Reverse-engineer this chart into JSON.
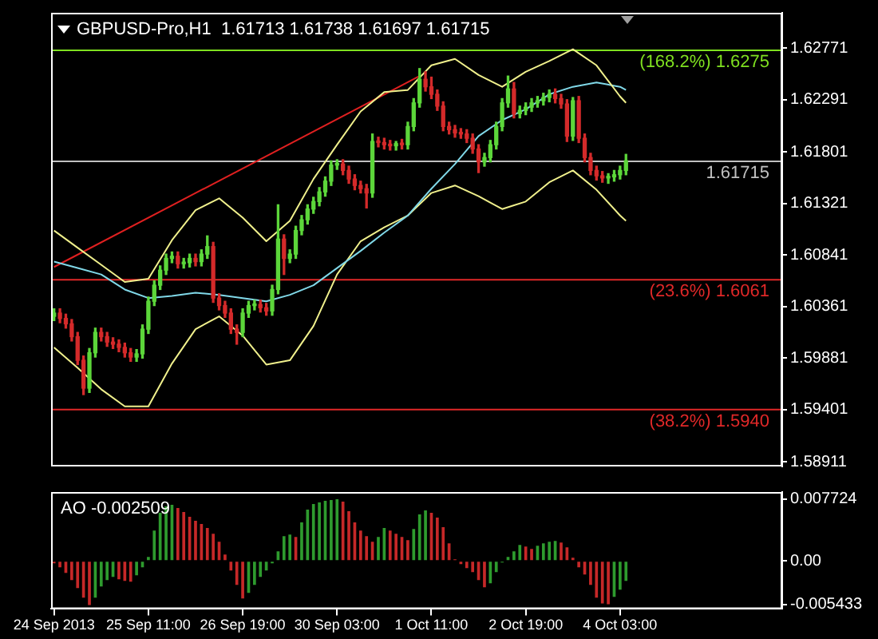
{
  "chart_data": [
    {
      "type": "candlestick",
      "title": "GBPUSD-Pro,H1  1.61713 1.61738 1.61697 1.61715",
      "categories": [
        null,
        null,
        null,
        null,
        null,
        null,
        null,
        null,
        null,
        null,
        null,
        null,
        null,
        null,
        null,
        null,
        null,
        null,
        null,
        null,
        null,
        null,
        null,
        null,
        null,
        null,
        null,
        null,
        null,
        null,
        null,
        null,
        null,
        null,
        null,
        null,
        null,
        null,
        null,
        null,
        null,
        null,
        null,
        null,
        null,
        null,
        null,
        null,
        null,
        null,
        null,
        null,
        null,
        null,
        null,
        null,
        null,
        null,
        null,
        null,
        null,
        null,
        null,
        null,
        null,
        null,
        null,
        null,
        null,
        null,
        null,
        null,
        null,
        null,
        null,
        null,
        null,
        null,
        null,
        null,
        null,
        null,
        null,
        null,
        null,
        null,
        null,
        null,
        null,
        null,
        null,
        null,
        null,
        null,
        null,
        null,
        null,
        null,
        null,
        null,
        null,
        null,
        null,
        null,
        null,
        null,
        null,
        null,
        null,
        null,
        null,
        null,
        null,
        null,
        null,
        null,
        null,
        null,
        null,
        null,
        null,
        null,
        null,
        null
      ],
      "ohlc": [
        [
          1.6027,
          1.6034,
          1.6023,
          1.603
        ],
        [
          1.603,
          1.6034,
          1.6021,
          1.6025
        ],
        [
          1.6025,
          1.6029,
          1.6016,
          1.602
        ],
        [
          1.602,
          1.6024,
          1.6004,
          1.6008
        ],
        [
          1.6008,
          1.6012,
          1.5982,
          1.5986
        ],
        [
          1.5986,
          1.599,
          1.5954,
          1.596
        ],
        [
          1.596,
          1.5997,
          1.5956,
          1.5993
        ],
        [
          1.5993,
          1.6016,
          1.5989,
          1.6012
        ],
        [
          1.6012,
          1.6016,
          1.6004,
          1.6008
        ],
        [
          1.6008,
          1.6012,
          1.5999,
          1.6003
        ],
        [
          1.6003,
          1.6007,
          1.5997,
          1.6001
        ],
        [
          1.6001,
          1.6005,
          1.5994,
          1.5998
        ],
        [
          1.5998,
          1.6002,
          1.5989,
          1.5993
        ],
        [
          1.5993,
          1.5997,
          1.5985,
          1.5989
        ],
        [
          1.5989,
          1.5996,
          1.5985,
          1.5992
        ],
        [
          1.5992,
          1.6019,
          1.5988,
          1.6015
        ],
        [
          1.6015,
          1.6045,
          1.6011,
          1.6041
        ],
        [
          1.6041,
          1.606,
          1.6037,
          1.6056
        ],
        [
          1.6056,
          1.6074,
          1.6052,
          1.607
        ],
        [
          1.607,
          1.6085,
          1.6066,
          1.6081
        ],
        [
          1.6081,
          1.6087,
          1.6077,
          1.6083
        ],
        [
          1.6083,
          1.6087,
          1.6072,
          1.6076
        ],
        [
          1.6076,
          1.6081,
          1.6072,
          1.6077
        ],
        [
          1.6077,
          1.6085,
          1.6073,
          1.6081
        ],
        [
          1.6081,
          1.6085,
          1.6074,
          1.6078
        ],
        [
          1.6078,
          1.6089,
          1.6074,
          1.6085
        ],
        [
          1.6085,
          1.6102,
          1.6081,
          1.6092
        ],
        [
          1.6092,
          1.6096,
          1.604,
          1.6044
        ],
        [
          1.6044,
          1.6048,
          1.6033,
          1.6037
        ],
        [
          1.6037,
          1.6041,
          1.6026,
          1.603
        ],
        [
          1.603,
          1.6034,
          1.6011,
          1.6015
        ],
        [
          1.6015,
          1.6019,
          1.6001,
          1.6012
        ],
        [
          1.6012,
          1.6034,
          1.6008,
          1.603
        ],
        [
          1.603,
          1.6041,
          1.6026,
          1.6037
        ],
        [
          1.6037,
          1.6042,
          1.6033,
          1.6038
        ],
        [
          1.6038,
          1.6042,
          1.6031,
          1.6035
        ],
        [
          1.6035,
          1.6039,
          1.6028,
          1.6032
        ],
        [
          1.6032,
          1.6056,
          1.6028,
          1.6052
        ],
        [
          1.6052,
          1.6131,
          1.6048,
          1.6099
        ],
        [
          1.6099,
          1.6103,
          1.6066,
          1.6081
        ],
        [
          1.6081,
          1.6089,
          1.6077,
          1.6085
        ],
        [
          1.6085,
          1.6111,
          1.6081,
          1.6107
        ],
        [
          1.6107,
          1.6121,
          1.6103,
          1.6117
        ],
        [
          1.6117,
          1.6131,
          1.6113,
          1.6127
        ],
        [
          1.6127,
          1.6138,
          1.6123,
          1.6134
        ],
        [
          1.6134,
          1.6147,
          1.613,
          1.6143
        ],
        [
          1.6143,
          1.6157,
          1.6139,
          1.6153
        ],
        [
          1.6153,
          1.6172,
          1.6149,
          1.6168
        ],
        [
          1.6168,
          1.6173,
          1.6164,
          1.6169
        ],
        [
          1.6169,
          1.6173,
          1.6159,
          1.6163
        ],
        [
          1.6163,
          1.6167,
          1.6151,
          1.6155
        ],
        [
          1.6155,
          1.6159,
          1.6145,
          1.6149
        ],
        [
          1.6149,
          1.6153,
          1.6142,
          1.6146
        ],
        [
          1.6146,
          1.615,
          1.6128,
          1.6142
        ],
        [
          1.6142,
          1.6197,
          1.6138,
          1.619
        ],
        [
          1.619,
          1.6194,
          1.6185,
          1.6189
        ],
        [
          1.6189,
          1.6193,
          1.6183,
          1.6187
        ],
        [
          1.6187,
          1.6191,
          1.6182,
          1.6186
        ],
        [
          1.6186,
          1.619,
          1.6182,
          1.6188
        ],
        [
          1.6188,
          1.6192,
          1.6183,
          1.6187
        ],
        [
          1.6187,
          1.6208,
          1.6183,
          1.6204
        ],
        [
          1.6204,
          1.623,
          1.62,
          1.6226
        ],
        [
          1.6226,
          1.6258,
          1.6222,
          1.6248
        ],
        [
          1.6248,
          1.6255,
          1.6237,
          1.6241
        ],
        [
          1.6241,
          1.625,
          1.623,
          1.6234
        ],
        [
          1.6234,
          1.6238,
          1.6219,
          1.6223
        ],
        [
          1.6223,
          1.6227,
          1.62,
          1.6204
        ],
        [
          1.6204,
          1.6208,
          1.6197,
          1.6201
        ],
        [
          1.6201,
          1.6205,
          1.6194,
          1.6198
        ],
        [
          1.6198,
          1.6202,
          1.6193,
          1.6197
        ],
        [
          1.6197,
          1.6201,
          1.6189,
          1.6193
        ],
        [
          1.6193,
          1.6197,
          1.6179,
          1.6183
        ],
        [
          1.6183,
          1.6187,
          1.6161,
          1.6171
        ],
        [
          1.6171,
          1.6179,
          1.6167,
          1.6175
        ],
        [
          1.6175,
          1.6191,
          1.6171,
          1.6187
        ],
        [
          1.6187,
          1.6208,
          1.6183,
          1.6204
        ],
        [
          1.6204,
          1.623,
          1.62,
          1.6226
        ],
        [
          1.6226,
          1.6251,
          1.6222,
          1.6239
        ],
        [
          1.6239,
          1.6245,
          1.6212,
          1.6216
        ],
        [
          1.6216,
          1.6223,
          1.6212,
          1.6219
        ],
        [
          1.6219,
          1.6226,
          1.6215,
          1.6222
        ],
        [
          1.6222,
          1.623,
          1.6218,
          1.6226
        ],
        [
          1.6226,
          1.6232,
          1.6222,
          1.6228
        ],
        [
          1.6228,
          1.6235,
          1.6224,
          1.6231
        ],
        [
          1.6231,
          1.6238,
          1.6227,
          1.6234
        ],
        [
          1.6234,
          1.6239,
          1.6226,
          1.623
        ],
        [
          1.623,
          1.6234,
          1.6221,
          1.6225
        ],
        [
          1.6225,
          1.6229,
          1.619,
          1.6195
        ],
        [
          1.6195,
          1.6231,
          1.6191,
          1.6228
        ],
        [
          1.6228,
          1.6232,
          1.6189,
          1.6193
        ],
        [
          1.6193,
          1.6197,
          1.6171,
          1.6175
        ],
        [
          1.6175,
          1.6179,
          1.6159,
          1.6163
        ],
        [
          1.6163,
          1.6167,
          1.6154,
          1.6158
        ],
        [
          1.6158,
          1.6162,
          1.6152,
          1.6156
        ],
        [
          1.6156,
          1.616,
          1.6151,
          1.6157
        ],
        [
          1.6157,
          1.6163,
          1.6153,
          1.6159
        ],
        [
          1.6159,
          1.6167,
          1.6155,
          1.6163
        ],
        [
          1.6163,
          1.6178,
          1.6159,
          1.6172
        ],
        null,
        null,
        null,
        null,
        null,
        null,
        null,
        null,
        null,
        null,
        null,
        null,
        null,
        null,
        null,
        null,
        null,
        null,
        null,
        null,
        null,
        null,
        null,
        null,
        null,
        null
      ],
      "colors": [
        "#5cd63a",
        "#d42a2a",
        "#d42a2a",
        "#d42a2a",
        "#d42a2a",
        "#d42a2a",
        "#5cd63a",
        "#5cd63a",
        "#d42a2a",
        "#d42a2a",
        "#d42a2a",
        "#d42a2a",
        "#d42a2a",
        "#d42a2a",
        "#5cd63a",
        "#5cd63a",
        "#5cd63a",
        "#5cd63a",
        "#5cd63a",
        "#5cd63a",
        "#5cd63a",
        "#d42a2a",
        "#5cd63a",
        "#5cd63a",
        "#d42a2a",
        "#5cd63a",
        "#5cd63a",
        "#d42a2a",
        "#d42a2a",
        "#d42a2a",
        "#d42a2a",
        "#d42a2a",
        "#5cd63a",
        "#5cd63a",
        "#5cd63a",
        "#d42a2a",
        "#d42a2a",
        "#5cd63a",
        "#5cd63a",
        "#d42a2a",
        "#5cd63a",
        "#5cd63a",
        "#5cd63a",
        "#5cd63a",
        "#5cd63a",
        "#5cd63a",
        "#5cd63a",
        "#5cd63a",
        "#5cd63a",
        "#d42a2a",
        "#d42a2a",
        "#d42a2a",
        "#d42a2a",
        "#d42a2a",
        "#5cd63a",
        "#d42a2a",
        "#d42a2a",
        "#d42a2a",
        "#5cd63a",
        "#d42a2a",
        "#5cd63a",
        "#5cd63a",
        "#5cd63a",
        "#d42a2a",
        "#d42a2a",
        "#d42a2a",
        "#d42a2a",
        "#d42a2a",
        "#d42a2a",
        "#d42a2a",
        "#d42a2a",
        "#d42a2a",
        "#d42a2a",
        "#5cd63a",
        "#5cd63a",
        "#5cd63a",
        "#5cd63a",
        "#5cd63a",
        "#d42a2a",
        "#5cd63a",
        "#5cd63a",
        "#5cd63a",
        "#5cd63a",
        "#5cd63a",
        "#5cd63a",
        "#d42a2a",
        "#d42a2a",
        "#d42a2a",
        "#5cd63a",
        "#d42a2a",
        "#d42a2a",
        "#d42a2a",
        "#d42a2a",
        "#d42a2a",
        "#5cd63a",
        "#5cd63a",
        "#5cd63a",
        "#5cd63a",
        null,
        null,
        null,
        null,
        null,
        null,
        null,
        null,
        null,
        null,
        null,
        null,
        null,
        null,
        null,
        null,
        null,
        null,
        null,
        null,
        null,
        null,
        null,
        null,
        null,
        null
      ],
      "series": [
        {
          "type": "line",
          "color": "#f0f08c",
          "values": [
            1.6107,
            null,
            null,
            null,
            1.6091,
            null,
            null,
            null,
            1.6075,
            null,
            null,
            null,
            1.6059,
            null,
            null,
            null,
            1.6062,
            null,
            null,
            null,
            1.6098,
            null,
            null,
            null,
            1.6126,
            null,
            null,
            null,
            1.6137,
            null,
            null,
            null,
            1.6119,
            null,
            null,
            null,
            1.6097,
            null,
            null,
            null,
            1.6116,
            null,
            null,
            null,
            1.6155,
            null,
            null,
            null,
            1.6187,
            null,
            null,
            null,
            1.6218,
            null,
            null,
            null,
            1.6236,
            null,
            null,
            null,
            1.6238,
            null,
            null,
            null,
            1.6261,
            null,
            null,
            null,
            1.6267,
            null,
            null,
            null,
            1.6252,
            null,
            null,
            null,
            1.6241,
            null,
            null,
            null,
            1.6255,
            null,
            null,
            null,
            1.6265,
            null,
            null,
            null,
            1.6276,
            null,
            null,
            null,
            1.6261,
            null,
            null,
            null,
            1.6232,
            1.6226,
            null,
            null,
            null,
            null,
            null,
            null,
            null,
            null,
            null,
            null,
            null,
            null,
            null,
            null,
            null,
            null,
            null,
            null,
            null,
            null,
            null,
            null,
            null,
            null,
            null,
            null
          ]
        },
        {
          "type": "line",
          "color": "#80d8e8",
          "values": [
            1.6078,
            null,
            null,
            null,
            1.6072,
            null,
            null,
            null,
            1.6066,
            null,
            null,
            null,
            1.6052,
            null,
            null,
            null,
            1.6044,
            null,
            null,
            null,
            1.6046,
            null,
            null,
            null,
            1.6049,
            null,
            null,
            null,
            1.6047,
            null,
            null,
            null,
            1.6044,
            null,
            null,
            null,
            1.6041,
            null,
            null,
            null,
            1.6047,
            null,
            null,
            null,
            1.6056,
            null,
            null,
            null,
            1.6072,
            null,
            null,
            null,
            1.6088,
            null,
            null,
            null,
            1.6105,
            null,
            null,
            null,
            1.6121,
            null,
            null,
            null,
            1.6146,
            null,
            null,
            null,
            1.6169,
            null,
            null,
            null,
            1.6195,
            null,
            null,
            null,
            1.621,
            null,
            null,
            null,
            1.622,
            null,
            null,
            null,
            1.6234,
            null,
            null,
            null,
            1.6241,
            null,
            null,
            null,
            1.6245,
            null,
            null,
            null,
            1.6241,
            1.6238,
            null,
            null,
            null,
            null,
            null,
            null,
            null,
            null,
            null,
            null,
            null,
            null,
            null,
            null,
            null,
            null,
            null,
            null,
            null,
            null,
            null,
            null,
            null,
            null,
            null,
            null
          ]
        },
        {
          "type": "line",
          "color": "#f0f08c",
          "values": [
            1.5998,
            null,
            null,
            null,
            1.5979,
            null,
            null,
            null,
            1.5959,
            null,
            null,
            null,
            1.5943,
            null,
            null,
            null,
            1.5943,
            null,
            null,
            null,
            1.5983,
            null,
            null,
            null,
            1.6015,
            null,
            null,
            null,
            1.6027,
            null,
            null,
            null,
            1.6009,
            null,
            null,
            null,
            1.5982,
            null,
            null,
            null,
            1.5986,
            null,
            null,
            null,
            1.6018,
            null,
            null,
            null,
            1.6066,
            null,
            null,
            null,
            1.6097,
            null,
            null,
            null,
            1.611,
            null,
            null,
            null,
            1.6121,
            null,
            null,
            null,
            1.6142,
            null,
            null,
            null,
            1.6149,
            null,
            null,
            null,
            1.6139,
            null,
            null,
            null,
            1.6127,
            null,
            null,
            null,
            1.6134,
            null,
            null,
            null,
            1.6152,
            null,
            null,
            null,
            1.6163,
            null,
            null,
            null,
            1.6145,
            null,
            null,
            null,
            1.6121,
            1.6116,
            null,
            null,
            null,
            null,
            null,
            null,
            null,
            null,
            null,
            null,
            null,
            null,
            null,
            null,
            null,
            null,
            null,
            null,
            null,
            null,
            null,
            null,
            null,
            null,
            null,
            null
          ]
        },
        {
          "type": "line",
          "color": "#e02020",
          "values": [
            1.6073,
            null,
            null,
            null,
            null,
            null,
            null,
            null,
            null,
            null,
            null,
            null,
            null,
            null,
            null,
            null,
            null,
            null,
            null,
            null,
            null,
            null,
            null,
            null,
            null,
            null,
            null,
            null,
            null,
            null,
            null,
            null,
            null,
            null,
            null,
            null,
            null,
            null,
            null,
            null,
            null,
            null,
            null,
            null,
            null,
            null,
            null,
            null,
            null,
            null,
            null,
            null,
            null,
            null,
            null,
            null,
            null,
            null,
            null,
            null,
            null,
            null,
            1.6251,
            null,
            null,
            null,
            null,
            null,
            null,
            null,
            null,
            null,
            null,
            null,
            null,
            null,
            null,
            null,
            null,
            null,
            null,
            null,
            null,
            null,
            null,
            null,
            null,
            null,
            null,
            null,
            null,
            null,
            null,
            null,
            null,
            null,
            null,
            null,
            null,
            null,
            null,
            null,
            null,
            null,
            null,
            null,
            null,
            null,
            null,
            null,
            null,
            null,
            null,
            null,
            null,
            null,
            null,
            null,
            null,
            null,
            null,
            null,
            null,
            null
          ]
        }
      ],
      "ref_lines": [
        {
          "axis": "y",
          "value": 1.61715,
          "label": "1.61715",
          "color": "#c0c0c0"
        },
        {
          "axis": "y",
          "value": 1.6275,
          "label": "(168.2%) 1.6275",
          "color": "#7fe020"
        },
        {
          "axis": "y",
          "value": 1.6061,
          "label": "(23.6%) 1.6061",
          "color": "#e02828"
        },
        {
          "axis": "y",
          "value": 1.594,
          "label": "(38.2%) 1.5940",
          "color": "#e02828"
        }
      ],
      "ylim": [
        1.5887,
        1.631
      ],
      "yticks": [
        1.62771,
        1.62291,
        1.61801,
        1.61321,
        1.60841,
        1.60361,
        1.59881,
        1.59401,
        1.58911
      ],
      "tick_labels": "y"
    },
    {
      "type": "bar",
      "title": "AO -0.002509",
      "categories": [
        "24 Sep 2013",
        null,
        null,
        null,
        null,
        null,
        null,
        null,
        null,
        null,
        null,
        null,
        null,
        null,
        null,
        null,
        "25 Sep 11:00",
        null,
        null,
        null,
        null,
        null,
        null,
        null,
        null,
        null,
        null,
        null,
        null,
        null,
        null,
        null,
        "26 Sep 19:00",
        null,
        null,
        null,
        null,
        null,
        null,
        null,
        null,
        null,
        null,
        null,
        null,
        null,
        null,
        null,
        "30 Sep 03:00",
        null,
        null,
        null,
        null,
        null,
        null,
        null,
        null,
        null,
        null,
        null,
        null,
        null,
        null,
        null,
        "1 Oct 11:00",
        null,
        null,
        null,
        null,
        null,
        null,
        null,
        null,
        null,
        null,
        null,
        null,
        null,
        null,
        null,
        "2 Oct 19:00",
        null,
        null,
        null,
        null,
        null,
        null,
        null,
        null,
        null,
        null,
        null,
        null,
        null,
        null,
        null,
        "4 Oct 03:00",
        null,
        null,
        null,
        null,
        null,
        null,
        null,
        null,
        null,
        null,
        null,
        null,
        null,
        null,
        null,
        null,
        null,
        null,
        null,
        null,
        null,
        null,
        null,
        null,
        null,
        null,
        null
      ],
      "values": [
        -0.0003,
        -0.0008,
        -0.0015,
        -0.0024,
        -0.0034,
        -0.0046,
        -0.0055,
        -0.0046,
        -0.0032,
        -0.0024,
        -0.002,
        -0.0023,
        -0.0025,
        -0.0026,
        -0.0018,
        -0.0008,
        0.0005,
        0.0038,
        0.006,
        0.0068,
        0.007,
        0.0066,
        0.0061,
        0.0055,
        0.005,
        0.0046,
        0.0041,
        0.0034,
        0.0024,
        0.0008,
        -0.0012,
        -0.003,
        -0.0047,
        -0.004,
        -0.003,
        -0.002,
        -0.0012,
        -0.0003,
        0.0012,
        0.0031,
        0.0033,
        0.003,
        0.0048,
        0.0064,
        0.0071,
        0.0073,
        0.0075,
        0.0076,
        0.0077,
        0.0074,
        0.0062,
        0.0048,
        0.0038,
        0.0031,
        0.0024,
        0.003,
        0.0041,
        0.0038,
        0.0034,
        0.003,
        0.0026,
        0.004,
        0.0058,
        0.0063,
        0.006,
        0.0054,
        0.0042,
        0.0022,
        0.0002,
        -0.0004,
        -0.0009,
        -0.0014,
        -0.0024,
        -0.0033,
        -0.0028,
        -0.0014,
        -0.0002,
        0.0005,
        0.0012,
        0.002,
        0.0018,
        0.0015,
        0.0019,
        0.0022,
        0.0024,
        0.0025,
        0.0023,
        0.0017,
        0.0004,
        -0.0008,
        -0.0017,
        -0.003,
        -0.0046,
        -0.0053,
        -0.0054,
        -0.0045,
        -0.0036,
        -0.0025,
        null,
        null,
        null,
        null,
        null,
        null,
        null,
        null,
        null,
        null,
        null,
        null,
        null,
        null,
        null,
        null,
        null,
        null,
        null,
        null,
        null,
        null,
        null,
        null,
        null,
        null
      ],
      "colors": [
        "#c62828",
        "#c62828",
        "#c62828",
        "#c62828",
        "#c62828",
        "#c62828",
        "#c62828",
        "#2e9b2e",
        "#2e9b2e",
        "#2e9b2e",
        "#2e9b2e",
        "#c62828",
        "#c62828",
        "#c62828",
        "#2e9b2e",
        "#2e9b2e",
        "#2e9b2e",
        "#2e9b2e",
        "#2e9b2e",
        "#2e9b2e",
        "#2e9b2e",
        "#c62828",
        "#c62828",
        "#c62828",
        "#c62828",
        "#c62828",
        "#c62828",
        "#c62828",
        "#c62828",
        "#c62828",
        "#c62828",
        "#c62828",
        "#c62828",
        "#2e9b2e",
        "#2e9b2e",
        "#2e9b2e",
        "#2e9b2e",
        "#2e9b2e",
        "#2e9b2e",
        "#2e9b2e",
        "#2e9b2e",
        "#c62828",
        "#2e9b2e",
        "#2e9b2e",
        "#2e9b2e",
        "#2e9b2e",
        "#2e9b2e",
        "#2e9b2e",
        "#2e9b2e",
        "#c62828",
        "#c62828",
        "#c62828",
        "#c62828",
        "#c62828",
        "#c62828",
        "#2e9b2e",
        "#2e9b2e",
        "#c62828",
        "#c62828",
        "#c62828",
        "#c62828",
        "#2e9b2e",
        "#2e9b2e",
        "#2e9b2e",
        "#c62828",
        "#c62828",
        "#c62828",
        "#c62828",
        "#c62828",
        "#c62828",
        "#c62828",
        "#c62828",
        "#c62828",
        "#c62828",
        "#2e9b2e",
        "#2e9b2e",
        "#2e9b2e",
        "#2e9b2e",
        "#2e9b2e",
        "#2e9b2e",
        "#c62828",
        "#c62828",
        "#2e9b2e",
        "#2e9b2e",
        "#2e9b2e",
        "#2e9b2e",
        "#c62828",
        "#c62828",
        "#c62828",
        "#c62828",
        "#c62828",
        "#c62828",
        "#c62828",
        "#c62828",
        "#c62828",
        "#2e9b2e",
        "#2e9b2e",
        "#2e9b2e",
        null,
        null,
        null,
        null,
        null,
        null,
        null,
        null,
        null,
        null,
        null,
        null,
        null,
        null,
        null,
        null,
        null,
        null,
        null,
        null,
        null,
        null,
        null,
        null,
        null,
        null
      ],
      "ylim": [
        -0.006,
        0.0086
      ],
      "yticks": [
        0.007724,
        {
          "value": 0,
          "label": "0.00"
        },
        -0.005433
      ]
    }
  ]
}
